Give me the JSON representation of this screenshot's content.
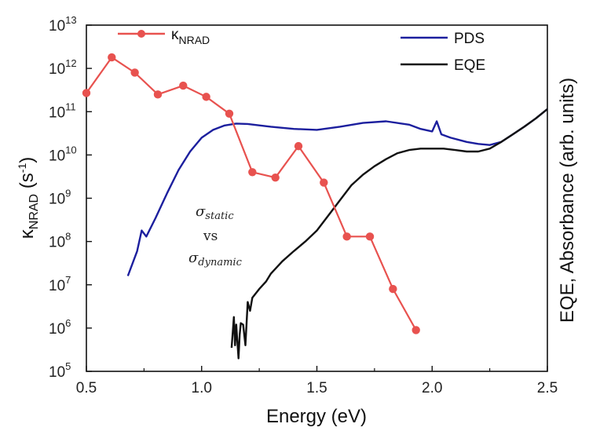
{
  "chart_data": {
    "type": "line",
    "xlabel": "Energy (eV)",
    "ylabel_left": {
      "main": "κ",
      "sub": "NRAD",
      "rest": " (s",
      "sup": "-1",
      "close": ")"
    },
    "ylabel_right": "EQE, Absorbance (arb. units)",
    "xlim": [
      0.5,
      2.5
    ],
    "ylim_log10": [
      5,
      13
    ],
    "y_scale": "log",
    "x_ticks": [
      "0.5",
      "1.0",
      "1.5",
      "2.0",
      "2.5"
    ],
    "x_tick_values": [
      0.5,
      1.0,
      1.5,
      2.0,
      2.5
    ],
    "y_tick_exponents": [
      5,
      6,
      7,
      8,
      9,
      10,
      11,
      12,
      13
    ],
    "y_tick_base": "10",
    "grid": false,
    "annotation": {
      "line1_main": "σ",
      "line1_sub": "static",
      "line2": "vs",
      "line3_main": "σ",
      "line3_sub": "dynamic"
    },
    "series": [
      {
        "name": "κNRAD",
        "legend_main": "κ",
        "legend_sub": "NRAD",
        "color": "#e8524f",
        "marker": "circle",
        "legend_position": "top-left",
        "x": [
          0.5,
          0.61,
          0.71,
          0.81,
          0.92,
          1.02,
          1.12,
          1.22,
          1.32,
          1.42,
          1.53,
          1.63,
          1.73,
          1.83,
          1.93
        ],
        "y": [
          270000000000.0,
          1800000000000.0,
          800000000000.0,
          250000000000.0,
          400000000000.0,
          220000000000.0,
          90000000000.0,
          4000000000.0,
          3000000000.0,
          16000000000.0,
          2300000000.0,
          130000000.0,
          130000000.0,
          8000000.0,
          900000.0
        ]
      },
      {
        "name": "PDS",
        "color": "#1c1f9e",
        "legend_position": "top-right",
        "x": [
          0.68,
          0.72,
          0.74,
          0.76,
          0.8,
          0.85,
          0.9,
          0.95,
          1.0,
          1.05,
          1.1,
          1.15,
          1.2,
          1.3,
          1.4,
          1.5,
          1.6,
          1.7,
          1.8,
          1.9,
          1.95,
          2.0,
          2.02,
          2.04,
          2.08,
          2.15,
          2.2,
          2.25,
          2.3,
          2.35,
          2.4,
          2.45,
          2.5
        ],
        "y": [
          16000000.0,
          60000000.0,
          180000000.0,
          130000000.0,
          350000000.0,
          1300000000.0,
          4500000000.0,
          12000000000.0,
          25000000000.0,
          38000000000.0,
          48000000000.0,
          53000000000.0,
          52000000000.0,
          45000000000.0,
          40000000000.0,
          38000000000.0,
          45000000000.0,
          55000000000.0,
          60000000000.0,
          50000000000.0,
          40000000000.0,
          35000000000.0,
          60000000000.0,
          30000000000.0,
          25000000000.0,
          20000000000.0,
          18000000000.0,
          17000000000.0,
          20000000000.0,
          30000000000.0,
          45000000000.0,
          70000000000.0,
          115000000000.0
        ]
      },
      {
        "name": "EQE",
        "color": "#111111",
        "legend_position": "top-right",
        "x": [
          1.13,
          1.14,
          1.145,
          1.15,
          1.16,
          1.165,
          1.17,
          1.18,
          1.19,
          1.2,
          1.21,
          1.22,
          1.25,
          1.28,
          1.3,
          1.35,
          1.4,
          1.45,
          1.5,
          1.55,
          1.6,
          1.65,
          1.7,
          1.75,
          1.8,
          1.85,
          1.9,
          1.95,
          2.0,
          2.05,
          2.1,
          2.15,
          2.2,
          2.25,
          2.3,
          2.35,
          2.4,
          2.45,
          2.5
        ],
        "y": [
          350000.0,
          1800000.0,
          400000.0,
          1200000.0,
          200000.0,
          700000.0,
          1300000.0,
          1200000.0,
          400000.0,
          4000000.0,
          2500000.0,
          5000000.0,
          8000000.0,
          12000000.0,
          18000000.0,
          35000000.0,
          60000000.0,
          100000000.0,
          180000000.0,
          400000000.0,
          900000000.0,
          2000000000.0,
          3500000000.0,
          5500000000.0,
          8000000000.0,
          11000000000.0,
          13000000000.0,
          14000000000.0,
          14000000000.0,
          14000000000.0,
          13000000000.0,
          12000000000.0,
          12000000000.0,
          14000000000.0,
          20000000000.0,
          30000000000.0,
          45000000000.0,
          70000000000.0,
          115000000000.0
        ]
      }
    ]
  }
}
